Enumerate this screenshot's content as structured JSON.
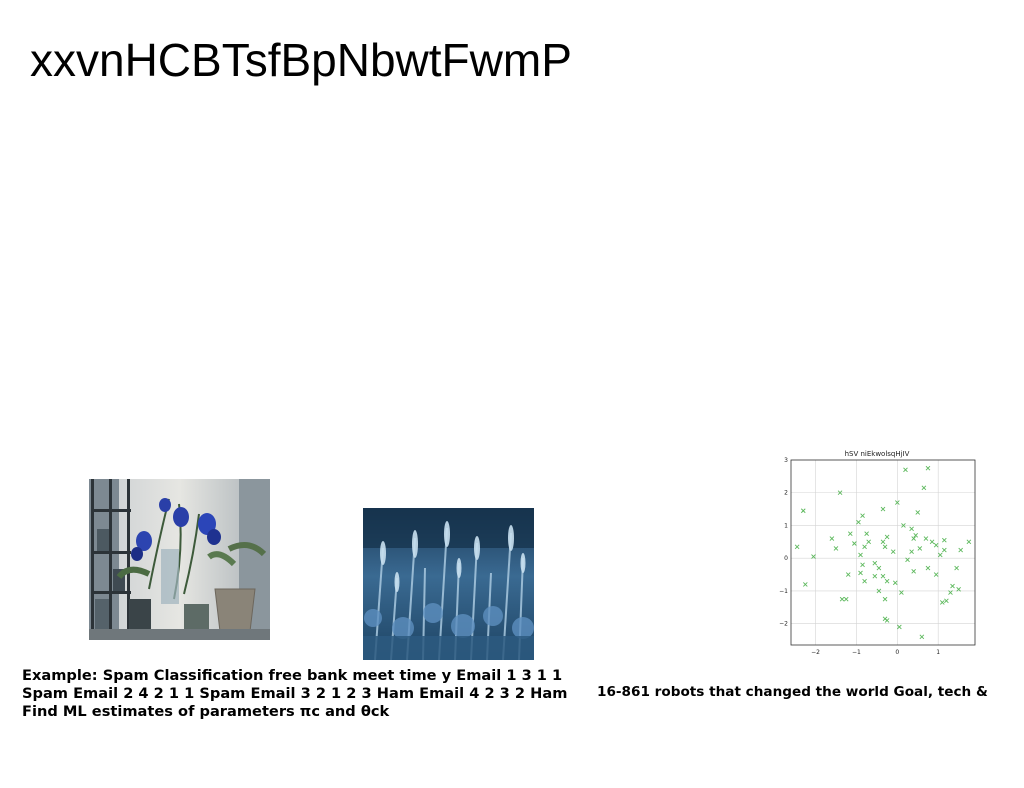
{
  "slide": {
    "title": "xxvnHCBTsfBpNbwtFwmP"
  },
  "captions": {
    "left": "Example: Spam Classification free bank meet time y Email 1 3 1 1 Spam Email 2 4 2 1 1 Spam Email 3 2 1 2 3 Ham Email 4 2 3 2 Ham Find ML estimates of parameters πc and θck",
    "right": "16-861 robots that changed the world Goal, tech &"
  },
  "images": {
    "left_photo": "blue-flowers-in-vases-photo",
    "middle_photo": "blue-flower-field-photo"
  },
  "chart_data": {
    "type": "scatter",
    "title": "hSV niEkwolsqHjIV",
    "xlabel": "",
    "ylabel": "",
    "xlim": [
      -2.6,
      1.9
    ],
    "ylim": [
      -2.65,
      3.0
    ],
    "xticks": [
      "−2",
      "−1",
      "0",
      "1"
    ],
    "xtick_values": [
      -2,
      -1,
      0,
      1
    ],
    "yticks": [
      "3",
      "2",
      "1",
      "0",
      "−1",
      "−2"
    ],
    "ytick_values": [
      3,
      2,
      1,
      0,
      -1,
      -2
    ],
    "grid": true,
    "marker": "x",
    "color": "#5cb85c",
    "points": [
      [
        0.2,
        2.7
      ],
      [
        0.75,
        2.75
      ],
      [
        0.65,
        2.15
      ],
      [
        -1.4,
        2.0
      ],
      [
        -2.3,
        1.45
      ],
      [
        0.0,
        1.7
      ],
      [
        -0.35,
        1.5
      ],
      [
        0.5,
        1.4
      ],
      [
        -0.85,
        1.3
      ],
      [
        -0.95,
        1.1
      ],
      [
        0.15,
        1.0
      ],
      [
        0.35,
        0.9
      ],
      [
        -0.75,
        0.75
      ],
      [
        0.45,
        0.7
      ],
      [
        -1.15,
        0.75
      ],
      [
        0.4,
        0.6
      ],
      [
        -0.25,
        0.65
      ],
      [
        0.7,
        0.6
      ],
      [
        0.85,
        0.5
      ],
      [
        1.15,
        0.55
      ],
      [
        -0.35,
        0.5
      ],
      [
        -1.05,
        0.45
      ],
      [
        -0.7,
        0.5
      ],
      [
        0.95,
        0.4
      ],
      [
        1.75,
        0.5
      ],
      [
        -1.6,
        0.6
      ],
      [
        -0.3,
        0.35
      ],
      [
        -0.8,
        0.35
      ],
      [
        -1.5,
        0.3
      ],
      [
        0.55,
        0.3
      ],
      [
        1.15,
        0.25
      ],
      [
        1.55,
        0.25
      ],
      [
        -2.45,
        0.35
      ],
      [
        -0.1,
        0.2
      ],
      [
        0.35,
        0.2
      ],
      [
        1.05,
        0.1
      ],
      [
        -0.9,
        0.1
      ],
      [
        -2.05,
        0.05
      ],
      [
        0.25,
        -0.05
      ],
      [
        -0.55,
        -0.15
      ],
      [
        -0.85,
        -0.2
      ],
      [
        1.45,
        -0.3
      ],
      [
        0.75,
        -0.3
      ],
      [
        -0.45,
        -0.3
      ],
      [
        -1.2,
        -0.5
      ],
      [
        0.4,
        -0.4
      ],
      [
        -0.9,
        -0.45
      ],
      [
        -0.35,
        -0.55
      ],
      [
        0.95,
        -0.5
      ],
      [
        -0.55,
        -0.55
      ],
      [
        -0.25,
        -0.7
      ],
      [
        -0.05,
        -0.75
      ],
      [
        -0.8,
        -0.7
      ],
      [
        1.5,
        -0.95
      ],
      [
        -2.25,
        -0.8
      ],
      [
        1.35,
        -0.85
      ],
      [
        -0.45,
        -1.0
      ],
      [
        0.1,
        -1.05
      ],
      [
        1.3,
        -1.05
      ],
      [
        -1.35,
        -1.25
      ],
      [
        -1.25,
        -1.25
      ],
      [
        1.1,
        -1.35
      ],
      [
        -0.3,
        -1.25
      ],
      [
        1.2,
        -1.3
      ],
      [
        -0.3,
        -1.85
      ],
      [
        -0.25,
        -1.9
      ],
      [
        0.05,
        -2.1
      ],
      [
        0.6,
        -2.4
      ]
    ]
  }
}
